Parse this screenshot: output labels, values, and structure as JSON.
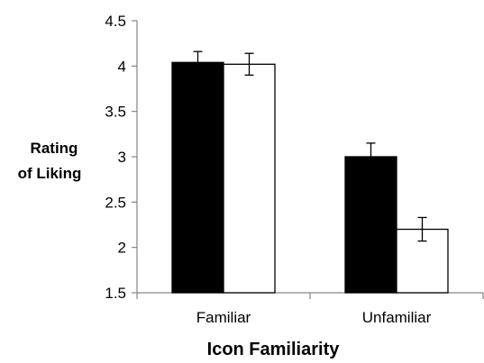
{
  "chart_data": {
    "type": "bar",
    "title": "",
    "xlabel": "Icon Familiarity",
    "ylabel_lines": [
      "Rating",
      "of Liking"
    ],
    "categories": [
      "Familiar",
      "Unfamiliar"
    ],
    "ylim": [
      1.5,
      4.5
    ],
    "yticks": [
      "1.5",
      "2",
      "2.5",
      "3",
      "3.5",
      "4",
      "4.5"
    ],
    "grid": false,
    "series": [
      {
        "values": [
          4.04,
          3.0
        ],
        "errors": [
          0.12,
          0.15
        ],
        "color": "#000000"
      },
      {
        "values": [
          4.02,
          2.2
        ],
        "errors": [
          0.12,
          0.13
        ],
        "color": "#ffffff"
      }
    ]
  }
}
